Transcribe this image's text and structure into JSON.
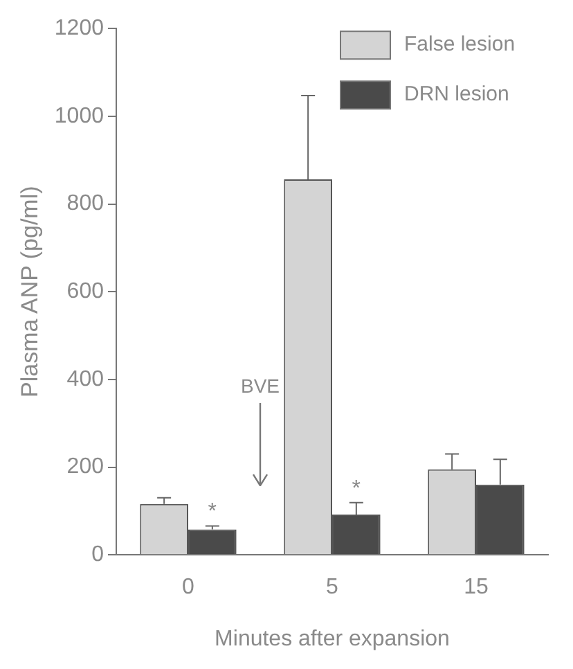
{
  "chart_data": {
    "type": "bar",
    "xlabel": "Minutes after expansion",
    "ylabel": "Plasma ANP (pg/ml)",
    "categories": [
      "0",
      "5",
      "15"
    ],
    "series": [
      {
        "name": "False lesion",
        "color": "#d4d4d4",
        "values": [
          116,
          856,
          195
        ],
        "errors": [
          [
            116,
            130
          ],
          [
            856,
            1047
          ],
          [
            195,
            230
          ]
        ]
      },
      {
        "name": "DRN lesion",
        "color": "#4a4a4a",
        "values": [
          58,
          92,
          160
        ],
        "errors": [
          [
            58,
            66
          ],
          [
            92,
            119
          ],
          [
            160,
            218
          ]
        ]
      }
    ],
    "ylim": [
      0,
      1200
    ],
    "yticks": [
      0,
      200,
      400,
      600,
      800,
      1000,
      1200
    ],
    "grid": false,
    "legend": "top right",
    "annotations": [
      {
        "text": "*",
        "x": "0",
        "y": 66
      },
      {
        "text": "*",
        "x": "5",
        "y": 119
      },
      "BVE"
    ]
  }
}
